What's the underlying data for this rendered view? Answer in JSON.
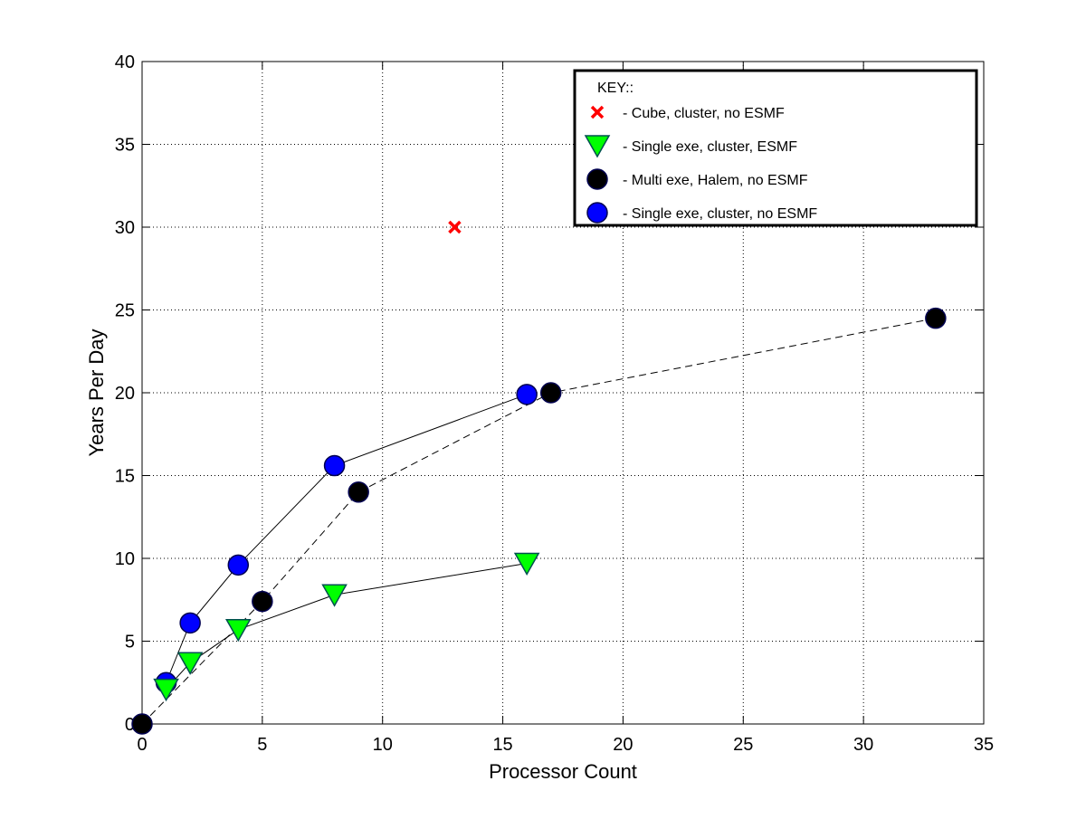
{
  "chart_data": {
    "type": "line",
    "xlabel": "Processor Count",
    "ylabel": "Years Per Day",
    "xlim": [
      0,
      35
    ],
    "ylim": [
      0,
      40
    ],
    "xticks": [
      "0",
      "5",
      "10",
      "15",
      "20",
      "25",
      "30",
      "35"
    ],
    "yticks": [
      "0",
      "5",
      "10",
      "15",
      "20",
      "25",
      "30",
      "35",
      "40"
    ],
    "grid": true,
    "legend": {
      "title": "KEY::",
      "placement": "top-right"
    },
    "series": [
      {
        "name": "- Single exe, cluster, no ESMF",
        "marker": "circle",
        "color": "#0000ff",
        "line": "solid",
        "x": [
          1,
          2,
          4,
          8,
          16
        ],
        "y": [
          2.5,
          6.1,
          9.6,
          15.6,
          19.9
        ]
      },
      {
        "name": "- Single exe, cluster, ESMF",
        "marker": "triangle-down",
        "color": "#00ff00",
        "line": "solid",
        "x": [
          1,
          2,
          4,
          8,
          16
        ],
        "y": [
          2.1,
          3.7,
          5.7,
          7.8,
          9.7
        ]
      },
      {
        "name": "- Multi exe, Halem, no ESMF",
        "marker": "circle",
        "color": "#000000",
        "line": "dashed",
        "x": [
          0,
          5,
          9,
          17,
          33
        ],
        "y": [
          0,
          7.4,
          14,
          20,
          24.5
        ]
      },
      {
        "name": "- Cube, cluster, no ESMF",
        "marker": "x",
        "color": "#ff0000",
        "line": "none",
        "x": [
          13
        ],
        "y": [
          30
        ]
      }
    ],
    "legend_order": [
      3,
      1,
      2,
      0
    ]
  }
}
